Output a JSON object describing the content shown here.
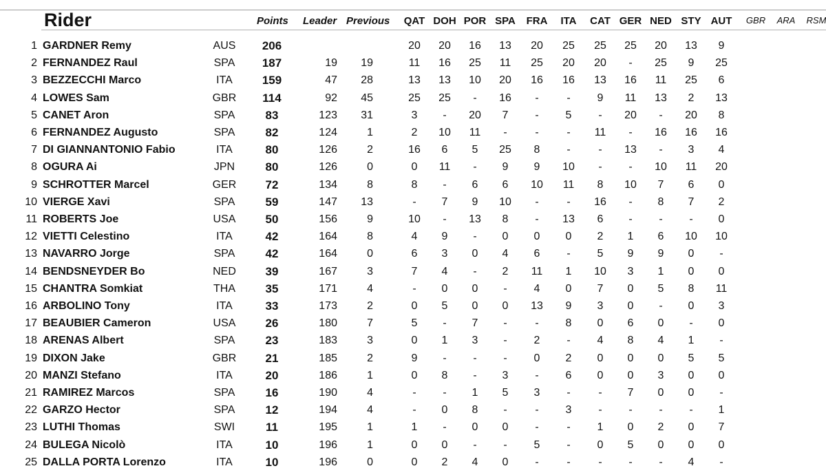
{
  "header": {
    "title": "Rider",
    "points": "Points",
    "leader": "Leader",
    "previous": "Previous",
    "races": [
      "QAT",
      "DOH",
      "POR",
      "SPA",
      "FRA",
      "ITA",
      "CAT",
      "GER",
      "NED",
      "STY",
      "AUT"
    ],
    "future_races": [
      "GBR",
      "ARA",
      "RSM"
    ]
  },
  "rows": [
    {
      "pos": "1",
      "name": "GARDNER Remy",
      "nat": "AUS",
      "pts": "206",
      "leader": "",
      "prev": "",
      "r": [
        "20",
        "20",
        "16",
        "13",
        "20",
        "25",
        "25",
        "25",
        "20",
        "13",
        "9"
      ]
    },
    {
      "pos": "2",
      "name": "FERNANDEZ Raul",
      "nat": "SPA",
      "pts": "187",
      "leader": "19",
      "prev": "19",
      "r": [
        "11",
        "16",
        "25",
        "11",
        "25",
        "20",
        "20",
        "-",
        "25",
        "9",
        "25"
      ]
    },
    {
      "pos": "3",
      "name": "BEZZECCHI Marco",
      "nat": "ITA",
      "pts": "159",
      "leader": "47",
      "prev": "28",
      "r": [
        "13",
        "13",
        "10",
        "20",
        "16",
        "16",
        "13",
        "16",
        "11",
        "25",
        "6"
      ]
    },
    {
      "pos": "4",
      "name": "LOWES Sam",
      "nat": "GBR",
      "pts": "114",
      "leader": "92",
      "prev": "45",
      "r": [
        "25",
        "25",
        "-",
        "16",
        "-",
        "-",
        "9",
        "11",
        "13",
        "2",
        "13"
      ]
    },
    {
      "pos": "5",
      "name": "CANET Aron",
      "nat": "SPA",
      "pts": "83",
      "leader": "123",
      "prev": "31",
      "r": [
        "3",
        "-",
        "20",
        "7",
        "-",
        "5",
        "-",
        "20",
        "-",
        "20",
        "8"
      ]
    },
    {
      "pos": "6",
      "name": "FERNANDEZ Augusto",
      "nat": "SPA",
      "pts": "82",
      "leader": "124",
      "prev": "1",
      "r": [
        "2",
        "10",
        "11",
        "-",
        "-",
        "-",
        "11",
        "-",
        "16",
        "16",
        "16"
      ]
    },
    {
      "pos": "7",
      "name": "DI GIANNANTONIO Fabio",
      "nat": "ITA",
      "pts": "80",
      "leader": "126",
      "prev": "2",
      "r": [
        "16",
        "6",
        "5",
        "25",
        "8",
        "-",
        "-",
        "13",
        "-",
        "3",
        "4"
      ]
    },
    {
      "pos": "8",
      "name": "OGURA Ai",
      "nat": "JPN",
      "pts": "80",
      "leader": "126",
      "prev": "0",
      "r": [
        "0",
        "11",
        "-",
        "9",
        "9",
        "10",
        "-",
        "-",
        "10",
        "11",
        "20"
      ]
    },
    {
      "pos": "9",
      "name": "SCHROTTER Marcel",
      "nat": "GER",
      "pts": "72",
      "leader": "134",
      "prev": "8",
      "r": [
        "8",
        "-",
        "6",
        "6",
        "10",
        "11",
        "8",
        "10",
        "7",
        "6",
        "0"
      ]
    },
    {
      "pos": "10",
      "name": "VIERGE Xavi",
      "nat": "SPA",
      "pts": "59",
      "leader": "147",
      "prev": "13",
      "r": [
        "-",
        "7",
        "9",
        "10",
        "-",
        "-",
        "16",
        "-",
        "8",
        "7",
        "2"
      ]
    },
    {
      "pos": "11",
      "name": "ROBERTS Joe",
      "nat": "USA",
      "pts": "50",
      "leader": "156",
      "prev": "9",
      "r": [
        "10",
        "-",
        "13",
        "8",
        "-",
        "13",
        "6",
        "-",
        "-",
        "-",
        "0"
      ]
    },
    {
      "pos": "12",
      "name": "VIETTI Celestino",
      "nat": "ITA",
      "pts": "42",
      "leader": "164",
      "prev": "8",
      "r": [
        "4",
        "9",
        "-",
        "0",
        "0",
        "0",
        "2",
        "1",
        "6",
        "10",
        "10"
      ]
    },
    {
      "pos": "13",
      "name": "NAVARRO Jorge",
      "nat": "SPA",
      "pts": "42",
      "leader": "164",
      "prev": "0",
      "r": [
        "6",
        "3",
        "0",
        "4",
        "6",
        "-",
        "5",
        "9",
        "9",
        "0",
        "-"
      ]
    },
    {
      "pos": "14",
      "name": "BENDSNEYDER Bo",
      "nat": "NED",
      "pts": "39",
      "leader": "167",
      "prev": "3",
      "r": [
        "7",
        "4",
        "-",
        "2",
        "11",
        "1",
        "10",
        "3",
        "1",
        "0",
        "0"
      ]
    },
    {
      "pos": "15",
      "name": "CHANTRA Somkiat",
      "nat": "THA",
      "pts": "35",
      "leader": "171",
      "prev": "4",
      "r": [
        "-",
        "0",
        "0",
        "-",
        "4",
        "0",
        "7",
        "0",
        "5",
        "8",
        "11"
      ]
    },
    {
      "pos": "16",
      "name": "ARBOLINO Tony",
      "nat": "ITA",
      "pts": "33",
      "leader": "173",
      "prev": "2",
      "r": [
        "0",
        "5",
        "0",
        "0",
        "13",
        "9",
        "3",
        "0",
        "-",
        "0",
        "3"
      ]
    },
    {
      "pos": "17",
      "name": "BEAUBIER Cameron",
      "nat": "USA",
      "pts": "26",
      "leader": "180",
      "prev": "7",
      "r": [
        "5",
        "-",
        "7",
        "-",
        "-",
        "8",
        "0",
        "6",
        "0",
        "-",
        "0"
      ]
    },
    {
      "pos": "18",
      "name": "ARENAS Albert",
      "nat": "SPA",
      "pts": "23",
      "leader": "183",
      "prev": "3",
      "r": [
        "0",
        "1",
        "3",
        "-",
        "2",
        "-",
        "4",
        "8",
        "4",
        "1",
        "-"
      ]
    },
    {
      "pos": "19",
      "name": "DIXON Jake",
      "nat": "GBR",
      "pts": "21",
      "leader": "185",
      "prev": "2",
      "r": [
        "9",
        "-",
        "-",
        "-",
        "0",
        "2",
        "0",
        "0",
        "0",
        "5",
        "5"
      ]
    },
    {
      "pos": "20",
      "name": "MANZI Stefano",
      "nat": "ITA",
      "pts": "20",
      "leader": "186",
      "prev": "1",
      "r": [
        "0",
        "8",
        "-",
        "3",
        "-",
        "6",
        "0",
        "0",
        "3",
        "0",
        "0"
      ]
    },
    {
      "pos": "21",
      "name": "RAMIREZ Marcos",
      "nat": "SPA",
      "pts": "16",
      "leader": "190",
      "prev": "4",
      "r": [
        "-",
        "-",
        "1",
        "5",
        "3",
        "-",
        "-",
        "7",
        "0",
        "0",
        "-"
      ]
    },
    {
      "pos": "22",
      "name": "GARZO Hector",
      "nat": "SPA",
      "pts": "12",
      "leader": "194",
      "prev": "4",
      "r": [
        "-",
        "0",
        "8",
        "-",
        "-",
        "3",
        "-",
        "-",
        "-",
        "-",
        "1"
      ]
    },
    {
      "pos": "23",
      "name": "LUTHI Thomas",
      "nat": "SWI",
      "pts": "11",
      "leader": "195",
      "prev": "1",
      "r": [
        "1",
        "-",
        "0",
        "0",
        "-",
        "-",
        "1",
        "0",
        "2",
        "0",
        "7"
      ]
    },
    {
      "pos": "24",
      "name": "BULEGA Nicolò",
      "nat": "ITA",
      "pts": "10",
      "leader": "196",
      "prev": "1",
      "r": [
        "0",
        "0",
        "-",
        "-",
        "5",
        "-",
        "0",
        "5",
        "0",
        "0",
        "0"
      ]
    },
    {
      "pos": "25",
      "name": "DALLA PORTA Lorenzo",
      "nat": "ITA",
      "pts": "10",
      "leader": "196",
      "prev": "0",
      "r": [
        "0",
        "2",
        "4",
        "0",
        "-",
        "-",
        "-",
        "-",
        "-",
        "4",
        "-"
      ]
    }
  ]
}
